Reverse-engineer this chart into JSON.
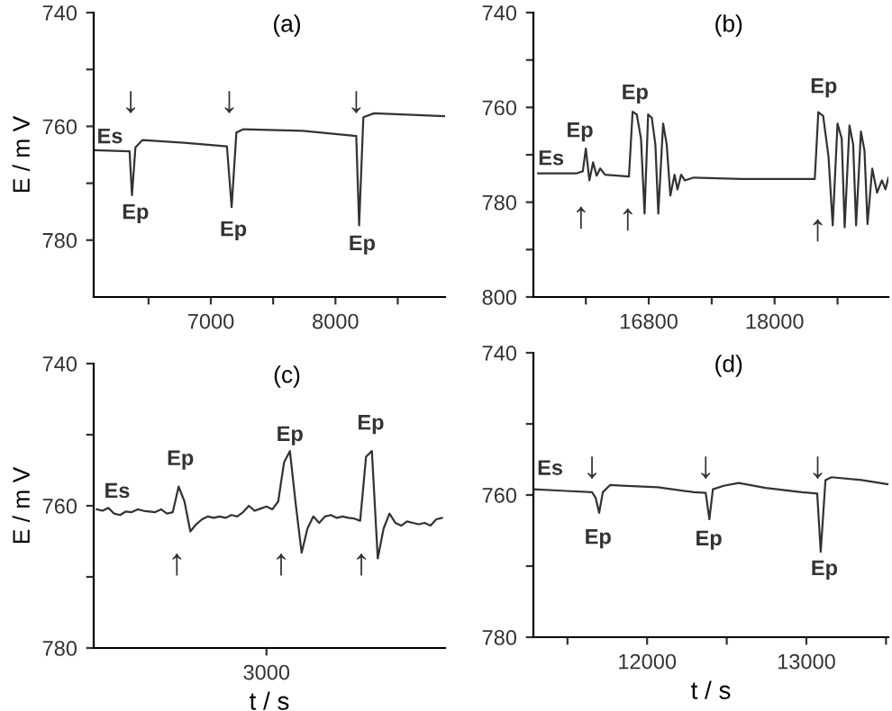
{
  "chart_data": [
    {
      "type": "line",
      "title": "(a)",
      "ylabel": "E / m V",
      "color": "#333333",
      "x": [
        6061,
        6348,
        6367,
        6395,
        6452,
        6786,
        7129,
        7167,
        7205,
        7262,
        7738,
        8167,
        8190,
        8224,
        8310,
        8880
      ],
      "values": [
        764.2,
        764.4,
        772.1,
        763.7,
        762.4,
        762.9,
        763.5,
        774.2,
        761.1,
        760.5,
        760.8,
        761.7,
        777.4,
        758.4,
        757.7,
        758.2
      ],
      "xlim": [
        6060,
        8880
      ],
      "ylim": [
        790,
        740
      ],
      "xticks": [
        {
          "value": 6500,
          "label": null
        },
        7000,
        {
          "value": 7500,
          "label": null
        },
        8000,
        {
          "value": 8500,
          "label": null
        }
      ],
      "yticks": [
        740,
        {
          "value": 750,
          "label": null
        },
        760,
        {
          "value": 770,
          "label": null
        },
        780
      ],
      "annotations": [
        "Es",
        "Ep",
        "Ep",
        "Ep",
        "↓",
        "↓",
        "↓"
      ]
    },
    {
      "type": "line",
      "title": "(b)",
      "color": "#333333",
      "x": [
        15743,
        16114,
        16171,
        16200,
        16234,
        16269,
        16303,
        16337,
        16383,
        16611,
        16646,
        16686,
        16726,
        16760,
        16794,
        16829,
        16863,
        16891,
        16937,
        16971,
        17006,
        17046,
        17074,
        17109,
        17143,
        17229,
        17686,
        18383,
        18417,
        18463,
        18514,
        18554,
        18600,
        18640,
        18668,
        18714,
        18749,
        18777,
        18823,
        18857,
        18886,
        18931,
        18977,
        19023,
        19057,
        19085
      ],
      "values": [
        773.9,
        773.9,
        773.5,
        768.7,
        775.4,
        771.6,
        774.4,
        772.9,
        774.2,
        774.6,
        760.9,
        761.5,
        766.6,
        782.4,
        761.5,
        762.2,
        767.8,
        782.4,
        763.4,
        767.8,
        778.6,
        774.2,
        777.3,
        774.2,
        775.4,
        774.8,
        775.1,
        775.1,
        761.0,
        761.8,
        770.4,
        784.9,
        763.4,
        766.6,
        785.3,
        763.8,
        767.8,
        784.9,
        765.1,
        769.1,
        784.6,
        772.9,
        778.0,
        775.4,
        777.3,
        774.8
      ],
      "xlim": [
        15700,
        19085
      ],
      "ylim": [
        800,
        740
      ],
      "xticks": [
        {
          "value": 16200,
          "label": null
        },
        16800,
        {
          "value": 17400,
          "label": null
        },
        18000,
        {
          "value": 18600,
          "label": null
        }
      ],
      "yticks": [
        740,
        {
          "value": 750,
          "label": null
        },
        760,
        {
          "value": 770,
          "label": null
        },
        780,
        {
          "value": 790,
          "label": null
        },
        800
      ],
      "annotations": [
        "Es",
        "Ep",
        "Ep",
        "Ep",
        "↑",
        "↑",
        "↑"
      ]
    },
    {
      "type": "line",
      "title": "(c)",
      "ylabel": "E / m V",
      "xlabel": "t / s",
      "color": "#333333",
      "categories": [
        null,
        null,
        null,
        null,
        null,
        null,
        null,
        null,
        null,
        null,
        null,
        null,
        null,
        null,
        null,
        null,
        null,
        null,
        null,
        null,
        null,
        null,
        null,
        null,
        null,
        null,
        null,
        null,
        null,
        "3000",
        null,
        null,
        null,
        null,
        null,
        null,
        null,
        null,
        null,
        null,
        null,
        null,
        null,
        null,
        null,
        null,
        null,
        null,
        null,
        null,
        null,
        null,
        null,
        null,
        null,
        null,
        null,
        null,
        null,
        null
      ],
      "values": [
        760.5,
        760.7,
        760.3,
        761.1,
        761.3,
        760.8,
        760.9,
        760.5,
        760.7,
        760.8,
        760.9,
        760.5,
        761.1,
        760.9,
        757.3,
        759.4,
        763.6,
        762.6,
        761.9,
        761.5,
        761.7,
        761.5,
        761.7,
        761.3,
        761.5,
        760.9,
        760.0,
        760.7,
        760.4,
        760.1,
        760.5,
        759.4,
        753.9,
        752.3,
        759.8,
        766.6,
        763.2,
        761.5,
        762.4,
        761.5,
        761.3,
        761.7,
        761.5,
        761.7,
        761.8,
        762.1,
        753.1,
        752.3,
        767.4,
        763.2,
        761.1,
        762.4,
        762.8,
        762.2,
        762.4,
        762.6,
        762.4,
        762.8,
        761.9,
        761.7
      ],
      "ylim": [
        780,
        740
      ],
      "yticks": [
        740,
        {
          "value": 750,
          "label": null
        },
        760,
        {
          "value": 770,
          "label": null
        },
        780
      ],
      "annotations": [
        "Es",
        "Ep",
        "Ep",
        "Ep",
        "↑",
        "↑",
        "↑"
      ]
    },
    {
      "type": "line",
      "title": "(d)",
      "xlabel": "t / s",
      "color": "#333333",
      "x": [
        11286,
        11466,
        11654,
        11677,
        11699,
        11722,
        11767,
        11842,
        12068,
        12293,
        12368,
        12391,
        12413,
        12481,
        12575,
        12744,
        12970,
        13068,
        13090,
        13120,
        13158,
        13346,
        13515
      ],
      "values": [
        759.2,
        759.4,
        759.6,
        760.4,
        762.5,
        759.6,
        758.6,
        758.7,
        758.9,
        759.6,
        759.7,
        763.4,
        759.2,
        758.7,
        758.3,
        759.0,
        759.6,
        759.8,
        768.0,
        757.9,
        757.5,
        757.9,
        758.5
      ],
      "xlim": [
        11286,
        13515
      ],
      "ylim": [
        780,
        740
      ],
      "xticks": [
        {
          "value": 11500,
          "label": null
        },
        12000,
        {
          "value": 12500,
          "label": null
        },
        13000,
        {
          "value": 13500,
          "label": null
        }
      ],
      "yticks": [
        740,
        {
          "value": 750,
          "label": null
        },
        760,
        {
          "value": 770,
          "label": null
        },
        780
      ],
      "annotations": [
        "Es",
        "Ep",
        "Ep",
        "Ep",
        "↓",
        "↓",
        "↓"
      ]
    }
  ]
}
